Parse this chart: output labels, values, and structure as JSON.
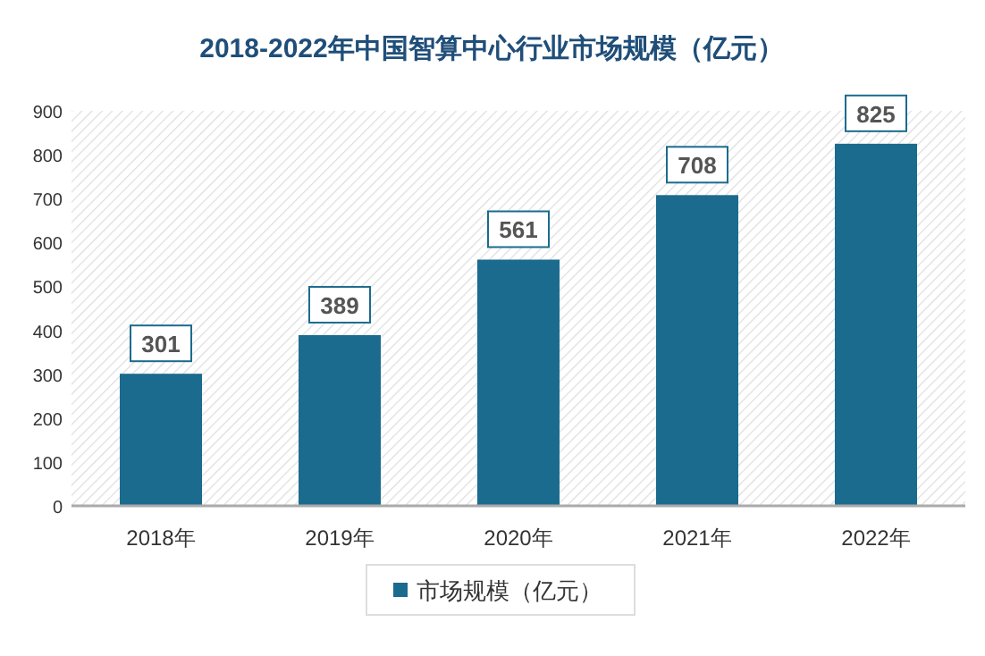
{
  "chart_data": {
    "type": "bar",
    "title": "2018-2022年中国智算中心行业市场规模（亿元）",
    "categories": [
      "2018年",
      "2019年",
      "2020年",
      "2021年",
      "2022年"
    ],
    "series": [
      {
        "name": "市场规模（亿元）",
        "color": "#1b6b8f",
        "values": [
          301,
          389,
          561,
          708,
          825
        ]
      }
    ],
    "ylim": [
      0,
      900
    ],
    "yticks": [
      0,
      100,
      200,
      300,
      400,
      500,
      600,
      700,
      800,
      900
    ],
    "data_labels": true,
    "legend": "bottom"
  }
}
